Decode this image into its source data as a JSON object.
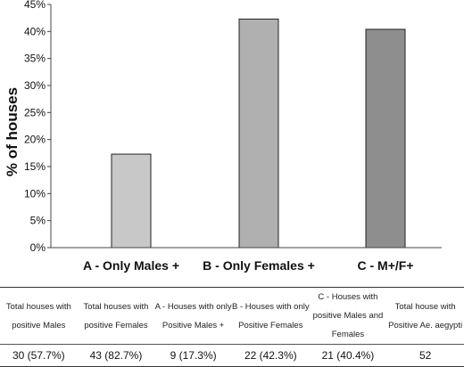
{
  "chart_data": {
    "type": "bar",
    "ylabel": "% of houses",
    "xlabel": "",
    "ylim": [
      0,
      45
    ],
    "yticks": [
      "0%",
      "5%",
      "10%",
      "15%",
      "20%",
      "25%",
      "30%",
      "35%",
      "40%",
      "45%"
    ],
    "categories": [
      "A - Only Males +",
      "B - Only Females +",
      "C - M+/F+"
    ],
    "values": [
      17.3,
      42.3,
      40.4
    ],
    "colors": [
      "#c8c8c8",
      "#b0b0b0",
      "#8e8e8e"
    ],
    "grid": false
  },
  "table": {
    "headers": [
      "Total houses with positive Males",
      "Total houses with positive Females",
      "A - Houses with only Positive Males +",
      "B - Houses with only Positive Females",
      "C - Houses with positive Males and Females",
      "Total house with Positive Ae. aegypti"
    ],
    "values": [
      "30 (57.7%)",
      "43 (82.7%)",
      "9 (17.3%)",
      "22 (42.3%)",
      "21 (40.4%)",
      "52"
    ]
  }
}
